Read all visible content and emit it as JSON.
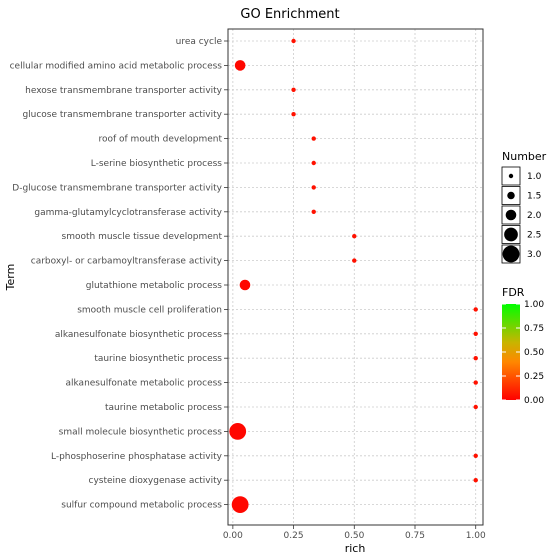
{
  "chart_data": {
    "type": "scatter",
    "title": "GO Enrichment",
    "xlabel": "rich",
    "ylabel": "Term",
    "xlim": [
      -0.02,
      1.03
    ],
    "xticks": [
      0.0,
      0.25,
      0.5,
      0.75,
      1.0
    ],
    "xtick_labels": [
      "0.00",
      "0.25",
      "0.50",
      "0.75",
      "1.00"
    ],
    "grid": true,
    "points": [
      {
        "term": "urea cycle",
        "rich": 0.25,
        "number": 1,
        "fdr": 0.05
      },
      {
        "term": "cellular modified amino acid metabolic process",
        "rich": 0.03,
        "number": 2,
        "fdr": 0.02
      },
      {
        "term": "hexose transmembrane transporter activity",
        "rich": 0.25,
        "number": 1,
        "fdr": 0.05
      },
      {
        "term": "glucose transmembrane transporter activity",
        "rich": 0.25,
        "number": 1,
        "fdr": 0.05
      },
      {
        "term": "roof of mouth development",
        "rich": 0.333,
        "number": 1,
        "fdr": 0.05
      },
      {
        "term": "L-serine biosynthetic process",
        "rich": 0.333,
        "number": 1,
        "fdr": 0.05
      },
      {
        "term": "D-glucose transmembrane transporter activity",
        "rich": 0.333,
        "number": 1,
        "fdr": 0.05
      },
      {
        "term": "gamma-glutamylcyclotransferase activity",
        "rich": 0.333,
        "number": 1,
        "fdr": 0.05
      },
      {
        "term": "smooth muscle tissue development",
        "rich": 0.5,
        "number": 1,
        "fdr": 0.05
      },
      {
        "term": "carboxyl- or carbamoyltransferase activity",
        "rich": 0.5,
        "number": 1,
        "fdr": 0.05
      },
      {
        "term": "glutathione metabolic process",
        "rich": 0.05,
        "number": 2,
        "fdr": 0.02
      },
      {
        "term": "smooth muscle cell proliferation",
        "rich": 1.0,
        "number": 1,
        "fdr": 0.05
      },
      {
        "term": "alkanesulfonate biosynthetic process",
        "rich": 1.0,
        "number": 1,
        "fdr": 0.05
      },
      {
        "term": "taurine biosynthetic process",
        "rich": 1.0,
        "number": 1,
        "fdr": 0.05
      },
      {
        "term": "alkanesulfonate metabolic process",
        "rich": 1.0,
        "number": 1,
        "fdr": 0.05
      },
      {
        "term": "taurine metabolic process",
        "rich": 1.0,
        "number": 1,
        "fdr": 0.05
      },
      {
        "term": "small molecule biosynthetic process",
        "rich": 0.02,
        "number": 3,
        "fdr": 0.02
      },
      {
        "term": "L-phosphoserine phosphatase activity",
        "rich": 1.0,
        "number": 1,
        "fdr": 0.05
      },
      {
        "term": "cysteine dioxygenase activity",
        "rich": 1.0,
        "number": 1,
        "fdr": 0.05
      },
      {
        "term": "sulfur compound metabolic process",
        "rich": 0.03,
        "number": 3,
        "fdr": 0.02
      }
    ],
    "size_legend": {
      "title": "Number",
      "values": [
        1.0,
        1.5,
        2.0,
        2.5,
        3.0
      ],
      "labels": [
        "1.0",
        "1.5",
        "2.0",
        "2.5",
        "3.0"
      ]
    },
    "color_legend": {
      "title": "FDR",
      "range": [
        0.0,
        1.0
      ],
      "ticks": [
        0.0,
        0.25,
        0.5,
        0.75,
        1.0
      ],
      "labels": [
        "0.00",
        "0.25",
        "0.50",
        "0.75",
        "1.00"
      ],
      "low_color": "#ff0000",
      "high_color": "#00ff00"
    },
    "legend_position": "right"
  },
  "colors": {
    "panel_border": "#333333",
    "grid": "#cccccc",
    "axis_text": "#4d4d4d"
  }
}
